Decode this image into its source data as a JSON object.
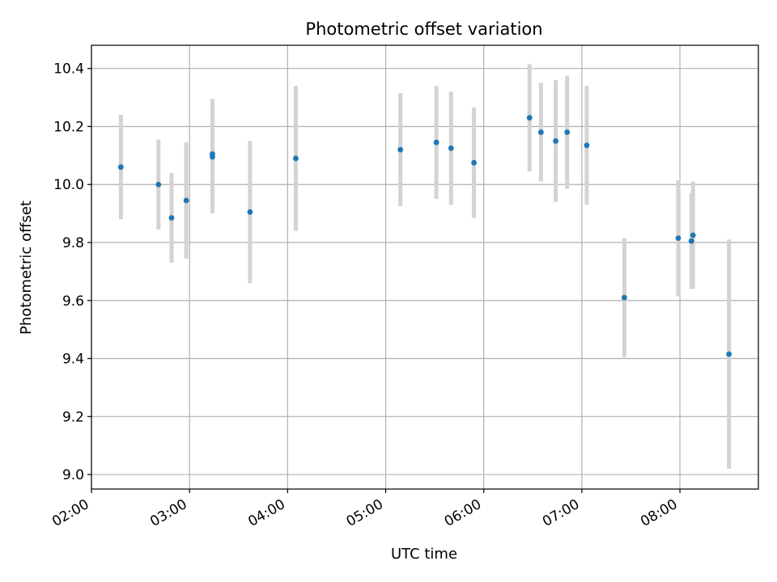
{
  "chart_data": {
    "type": "scatter",
    "title": "Photometric offset variation",
    "xlabel": "UTC time",
    "ylabel": "Photometric offset",
    "xlim": [
      "02:00",
      "08:48"
    ],
    "ylim": [
      8.95,
      10.48
    ],
    "grid": true,
    "x_ticks": [
      "02:00",
      "03:00",
      "04:00",
      "05:00",
      "06:00",
      "07:00",
      "08:00"
    ],
    "y_ticks": [
      "9.0",
      "9.2",
      "9.4",
      "9.6",
      "9.8",
      "10.0",
      "10.2",
      "10.4"
    ],
    "point_color": "#1f77b4",
    "errorbar_color": "#d3d3d3",
    "points": [
      {
        "t": "02:18",
        "y": 10.06,
        "err": 0.18
      },
      {
        "t": "02:41",
        "y": 10.0,
        "err": 0.155
      },
      {
        "t": "02:49",
        "y": 9.885,
        "err": 0.155
      },
      {
        "t": "02:58",
        "y": 9.945,
        "err": 0.2
      },
      {
        "t": "03:14",
        "y": 10.095,
        "err": 0.195
      },
      {
        "t": "03:14",
        "y": 10.105,
        "err": 0.19
      },
      {
        "t": "03:37",
        "y": 9.905,
        "err": 0.245
      },
      {
        "t": "04:05",
        "y": 10.09,
        "err": 0.25
      },
      {
        "t": "05:09",
        "y": 10.12,
        "err": 0.195
      },
      {
        "t": "05:31",
        "y": 10.145,
        "err": 0.195
      },
      {
        "t": "05:40",
        "y": 10.125,
        "err": 0.195
      },
      {
        "t": "05:54",
        "y": 10.075,
        "err": 0.19
      },
      {
        "t": "06:28",
        "y": 10.23,
        "err": 0.185
      },
      {
        "t": "06:35",
        "y": 10.18,
        "err": 0.17
      },
      {
        "t": "06:44",
        "y": 10.15,
        "err": 0.21
      },
      {
        "t": "06:51",
        "y": 10.18,
        "err": 0.195
      },
      {
        "t": "07:03",
        "y": 10.135,
        "err": 0.205
      },
      {
        "t": "07:26",
        "y": 9.61,
        "err": 0.205
      },
      {
        "t": "07:59",
        "y": 9.815,
        "err": 0.2
      },
      {
        "t": "08:07",
        "y": 9.805,
        "err": 0.165
      },
      {
        "t": "08:08",
        "y": 9.825,
        "err": 0.185
      },
      {
        "t": "08:30",
        "y": 9.415,
        "err": 0.395
      }
    ]
  }
}
